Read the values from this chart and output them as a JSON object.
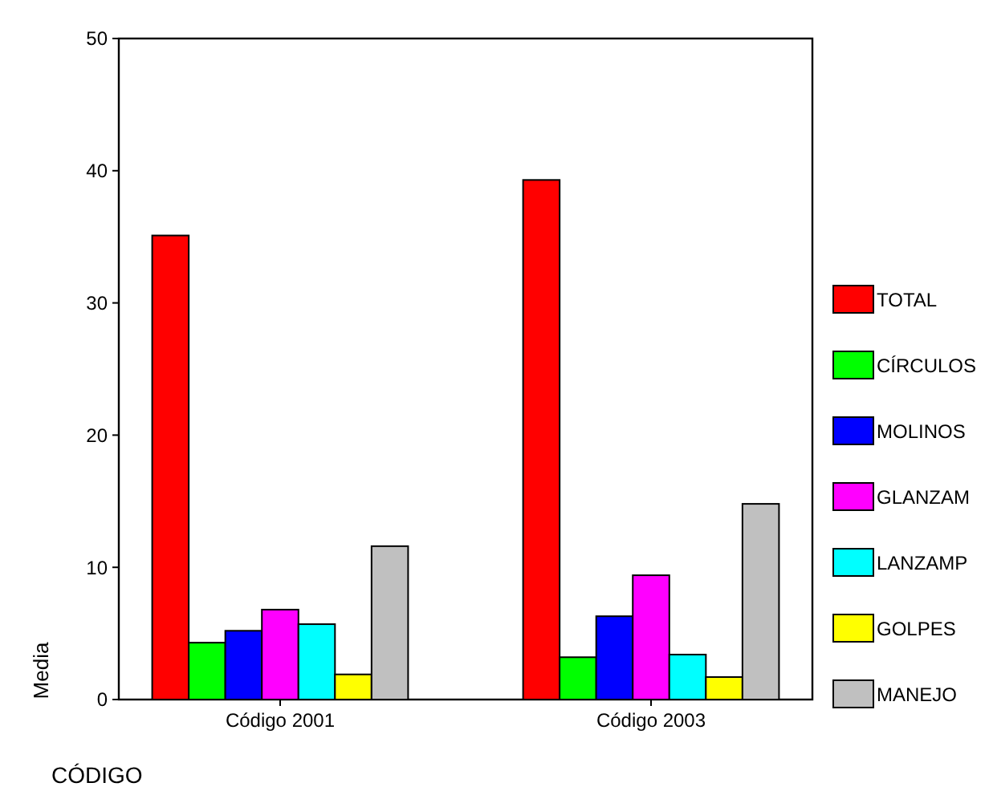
{
  "chart_data": {
    "type": "bar",
    "xlabel": "CÓDIGO",
    "ylabel": "Media",
    "categories": [
      "Código 2001",
      "Código 2003"
    ],
    "series": [
      {
        "name": "TOTAL",
        "color": "#ff0000",
        "values": [
          35.1,
          39.3
        ]
      },
      {
        "name": "CÍRCULOS",
        "color": "#00ff00",
        "values": [
          4.3,
          3.2
        ]
      },
      {
        "name": "MOLINOS",
        "color": "#0000ff",
        "values": [
          5.2,
          6.3
        ]
      },
      {
        "name": "GLANZAM",
        "color": "#ff00ff",
        "values": [
          6.8,
          9.4
        ]
      },
      {
        "name": "LANZAMP",
        "color": "#00ffff",
        "values": [
          5.7,
          3.4
        ]
      },
      {
        "name": "GOLPES",
        "color": "#ffff00",
        "values": [
          1.9,
          1.7
        ]
      },
      {
        "name": "MANEJO",
        "color": "#c0c0c0",
        "values": [
          11.6,
          14.8
        ]
      }
    ],
    "ylim": [
      0,
      50
    ],
    "yticks": [
      0,
      10,
      20,
      30,
      40,
      50
    ],
    "grid": false,
    "legend": "right"
  }
}
